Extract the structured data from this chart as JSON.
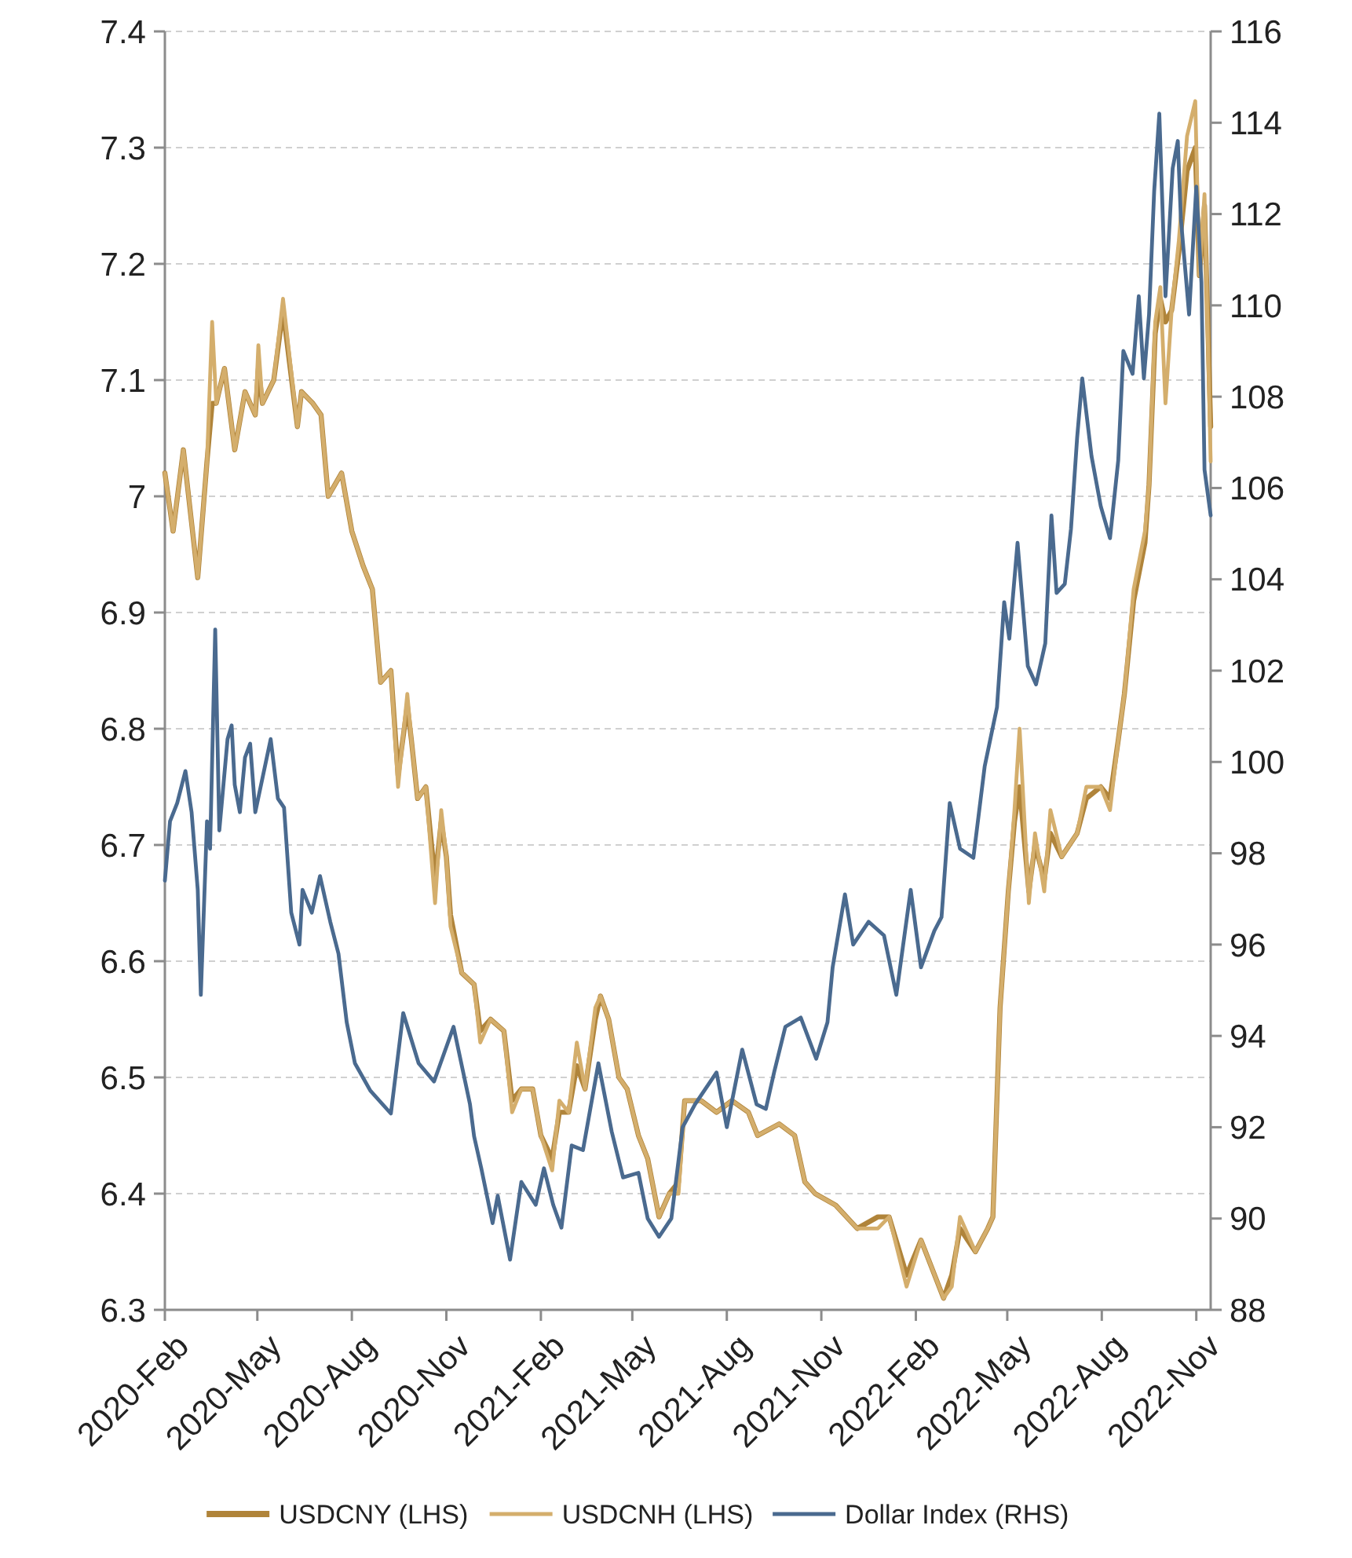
{
  "chart_data": {
    "type": "line",
    "x": [
      "2020-02-01",
      "2020-02-09",
      "2020-02-19",
      "2020-03-04",
      "2020-03-13",
      "2020-03-18",
      "2020-03-22",
      "2020-03-30",
      "2020-04-09",
      "2020-04-19",
      "2020-04-29",
      "2020-05-02",
      "2020-05-06",
      "2020-05-17",
      "2020-05-26",
      "2020-06-09",
      "2020-06-13",
      "2020-06-24",
      "2020-07-02",
      "2020-07-09",
      "2020-07-22",
      "2020-08-01",
      "2020-08-12",
      "2020-08-21",
      "2020-08-29",
      "2020-09-08",
      "2020-09-15",
      "2020-09-24",
      "2020-09-28",
      "2020-10-04",
      "2020-10-12",
      "2020-10-21",
      "2020-10-27",
      "2020-11-01",
      "2020-11-05",
      "2020-11-16",
      "2020-11-28",
      "2020-12-04",
      "2020-12-14",
      "2020-12-27",
      "2021-01-04",
      "2021-01-13",
      "2021-01-24",
      "2021-02-01",
      "2021-02-12",
      "2021-02-19",
      "2021-02-28",
      "2021-03-08",
      "2021-03-16",
      "2021-03-26",
      "2021-03-31",
      "2021-04-08",
      "2021-04-18",
      "2021-04-26",
      "2021-05-07",
      "2021-05-16",
      "2021-05-27",
      "2021-06-06",
      "2021-06-15",
      "2021-06-21",
      "2021-07-07",
      "2021-07-22",
      "2021-08-06",
      "2021-08-22",
      "2021-08-31",
      "2021-09-21",
      "2021-10-06",
      "2021-10-16",
      "2021-10-26",
      "2021-11-15",
      "2021-12-06",
      "2021-12-26",
      "2022-01-06",
      "2022-01-23",
      "2022-02-06",
      "2022-02-28",
      "2022-03-08",
      "2022-03-16",
      "2022-03-31",
      "2022-04-12",
      "2022-04-17",
      "2022-04-24",
      "2022-05-02",
      "2022-05-08",
      "2022-05-13",
      "2022-05-22",
      "2022-05-28",
      "2022-06-06",
      "2022-06-12",
      "2022-06-23",
      "2022-07-08",
      "2022-07-17",
      "2022-07-31",
      "2022-08-09",
      "2022-08-17",
      "2022-08-23",
      "2022-09-01",
      "2022-09-12",
      "2022-09-16",
      "2022-09-22",
      "2022-09-27",
      "2022-10-02",
      "2022-10-08",
      "2022-10-15",
      "2022-10-23",
      "2022-10-31",
      "2022-11-04",
      "2022-11-09",
      "2022-11-15"
    ],
    "series": [
      {
        "name": "USDCNY (LHS)",
        "color": "#b0843a",
        "values": [
          7.02,
          6.97,
          7.04,
          6.93,
          7.03,
          7.08,
          7.08,
          7.11,
          7.04,
          7.09,
          7.07,
          7.11,
          7.08,
          7.1,
          7.16,
          7.06,
          7.09,
          7.08,
          7.07,
          7.0,
          7.02,
          6.97,
          6.94,
          6.92,
          6.84,
          6.85,
          6.76,
          6.82,
          6.79,
          6.74,
          6.75,
          6.67,
          6.72,
          6.69,
          6.64,
          6.59,
          6.58,
          6.54,
          6.55,
          6.54,
          6.48,
          6.49,
          6.49,
          6.45,
          6.43,
          6.47,
          6.47,
          6.51,
          6.49,
          6.55,
          6.57,
          6.55,
          6.5,
          6.49,
          6.45,
          6.43,
          6.38,
          6.4,
          6.41,
          6.48,
          6.48,
          6.47,
          6.48,
          6.47,
          6.45,
          6.46,
          6.45,
          6.41,
          6.4,
          6.39,
          6.37,
          6.38,
          6.38,
          6.33,
          6.36,
          6.31,
          6.33,
          6.37,
          6.35,
          6.37,
          6.38,
          6.56,
          6.66,
          6.72,
          6.75,
          6.66,
          6.7,
          6.67,
          6.71,
          6.69,
          6.71,
          6.74,
          6.75,
          6.74,
          6.79,
          6.83,
          6.91,
          6.96,
          7.01,
          7.14,
          7.17,
          7.15,
          7.16,
          7.21,
          7.28,
          7.3,
          7.19,
          7.25,
          7.06
        ]
      },
      {
        "name": "USDCNH (LHS)",
        "color": "#d4ae6c",
        "values": [
          7.02,
          6.97,
          7.04,
          6.93,
          7.03,
          7.15,
          7.08,
          7.11,
          7.04,
          7.09,
          7.07,
          7.13,
          7.08,
          7.1,
          7.17,
          7.06,
          7.09,
          7.08,
          7.07,
          7.0,
          7.02,
          6.97,
          6.94,
          6.92,
          6.84,
          6.85,
          6.75,
          6.83,
          6.79,
          6.74,
          6.75,
          6.65,
          6.73,
          6.69,
          6.63,
          6.59,
          6.58,
          6.53,
          6.55,
          6.54,
          6.47,
          6.49,
          6.49,
          6.45,
          6.42,
          6.48,
          6.47,
          6.53,
          6.49,
          6.56,
          6.57,
          6.55,
          6.5,
          6.49,
          6.45,
          6.43,
          6.38,
          6.4,
          6.4,
          6.48,
          6.48,
          6.47,
          6.48,
          6.47,
          6.45,
          6.46,
          6.45,
          6.41,
          6.4,
          6.39,
          6.37,
          6.37,
          6.38,
          6.32,
          6.36,
          6.31,
          6.32,
          6.38,
          6.35,
          6.37,
          6.38,
          6.56,
          6.66,
          6.73,
          6.8,
          6.65,
          6.71,
          6.66,
          6.73,
          6.69,
          6.71,
          6.75,
          6.75,
          6.73,
          6.79,
          6.83,
          6.92,
          6.97,
          7.01,
          7.15,
          7.18,
          7.08,
          7.16,
          7.22,
          7.31,
          7.34,
          7.19,
          7.26,
          7.03
        ]
      },
      {
        "name": "Dollar Index (RHS)",
        "color": "#4a6a8f",
        "axis": "y2",
        "x": [
          "2020-02-01",
          "2020-02-06",
          "2020-02-13",
          "2020-02-21",
          "2020-02-27",
          "2020-03-04",
          "2020-03-07",
          "2020-03-13",
          "2020-03-16",
          "2020-03-21",
          "2020-03-25",
          "2020-04-02",
          "2020-04-06",
          "2020-04-09",
          "2020-04-14",
          "2020-04-19",
          "2020-04-24",
          "2020-04-29",
          "2020-05-14",
          "2020-05-21",
          "2020-05-27",
          "2020-06-03",
          "2020-06-11",
          "2020-06-14",
          "2020-06-23",
          "2020-07-01",
          "2020-07-11",
          "2020-07-19",
          "2020-07-27",
          "2020-08-04",
          "2020-08-19",
          "2020-09-08",
          "2020-09-20",
          "2020-10-05",
          "2020-10-20",
          "2020-11-08",
          "2020-11-24",
          "2020-11-28",
          "2020-12-05",
          "2020-12-16",
          "2020-12-21",
          "2021-01-02",
          "2021-01-13",
          "2021-01-27",
          "2021-02-04",
          "2021-02-13",
          "2021-02-21",
          "2021-03-03",
          "2021-03-14",
          "2021-03-29",
          "2021-04-11",
          "2021-04-22",
          "2021-05-07",
          "2021-05-16",
          "2021-05-27",
          "2021-06-08",
          "2021-06-19",
          "2021-07-01",
          "2021-07-22",
          "2021-08-01",
          "2021-08-16",
          "2021-08-30",
          "2021-09-08",
          "2021-09-16",
          "2021-09-27",
          "2021-10-12",
          "2021-10-27",
          "2021-11-07",
          "2021-11-12",
          "2021-11-24",
          "2021-12-02",
          "2021-12-17",
          "2022-01-01",
          "2022-01-13",
          "2022-01-27",
          "2022-02-06",
          "2022-02-19",
          "2022-02-26",
          "2022-03-06",
          "2022-03-16",
          "2022-03-29",
          "2022-04-09",
          "2022-04-21",
          "2022-04-28",
          "2022-05-03",
          "2022-05-11",
          "2022-05-21",
          "2022-05-29",
          "2022-06-07",
          "2022-06-13",
          "2022-06-18",
          "2022-06-26",
          "2022-07-02",
          "2022-07-08",
          "2022-07-13",
          "2022-07-22",
          "2022-07-31",
          "2022-08-09",
          "2022-08-17",
          "2022-08-22",
          "2022-08-31",
          "2022-09-06",
          "2022-09-11",
          "2022-09-16",
          "2022-09-21",
          "2022-09-26",
          "2022-10-02",
          "2022-10-09",
          "2022-10-14",
          "2022-10-17",
          "2022-10-25",
          "2022-11-01",
          "2022-11-06",
          "2022-11-09",
          "2022-11-15"
        ],
        "values": [
          97.4,
          98.7,
          99.1,
          99.8,
          98.9,
          97.2,
          94.9,
          98.7,
          98.1,
          102.9,
          98.5,
          100.5,
          100.8,
          99.5,
          98.9,
          100.1,
          100.4,
          98.9,
          100.5,
          99.2,
          99.0,
          96.7,
          96.0,
          97.2,
          96.7,
          97.5,
          96.5,
          95.8,
          94.3,
          93.4,
          92.8,
          92.3,
          94.5,
          93.4,
          93.0,
          94.2,
          92.5,
          91.8,
          91.1,
          89.9,
          90.5,
          89.1,
          90.8,
          90.3,
          91.1,
          90.3,
          89.8,
          91.6,
          91.5,
          93.4,
          91.9,
          90.9,
          91.0,
          90.0,
          89.6,
          90.0,
          92.0,
          92.5,
          93.2,
          92.0,
          93.7,
          92.5,
          92.4,
          93.2,
          94.2,
          94.4,
          93.5,
          94.3,
          95.5,
          97.1,
          96.0,
          96.5,
          96.2,
          94.9,
          97.2,
          95.5,
          96.3,
          96.6,
          99.1,
          98.1,
          97.9,
          99.9,
          101.2,
          103.5,
          102.7,
          104.8,
          102.1,
          101.7,
          102.6,
          105.4,
          103.7,
          103.9,
          105.1,
          107.1,
          108.4,
          106.7,
          105.6,
          104.9,
          106.6,
          109.0,
          108.5,
          110.2,
          108.4,
          109.8,
          112.5,
          114.2,
          110.2,
          113.0,
          113.6,
          111.9,
          109.8,
          112.6,
          110.5,
          106.4,
          105.4
        ]
      }
    ],
    "xlim": [
      "2020-02-01",
      "2022-11-15"
    ],
    "xticks": [
      {
        "value": "2020-02-01",
        "label": "2020-Feb"
      },
      {
        "value": "2020-05-01",
        "label": "2020-May"
      },
      {
        "value": "2020-08-01",
        "label": "2020-Aug"
      },
      {
        "value": "2020-11-01",
        "label": "2020-Nov"
      },
      {
        "value": "2021-02-01",
        "label": "2021-Feb"
      },
      {
        "value": "2021-05-01",
        "label": "2021-May"
      },
      {
        "value": "2021-08-01",
        "label": "2021-Aug"
      },
      {
        "value": "2021-11-01",
        "label": "2021-Nov"
      },
      {
        "value": "2022-02-01",
        "label": "2022-Feb"
      },
      {
        "value": "2022-05-01",
        "label": "2022-May"
      },
      {
        "value": "2022-08-01",
        "label": "2022-Aug"
      },
      {
        "value": "2022-11-01",
        "label": "2022-Nov"
      }
    ],
    "ylim": [
      6.3,
      7.4
    ],
    "yticks": [
      6.3,
      6.4,
      6.5,
      6.6,
      6.7,
      6.8,
      6.9,
      7,
      7.1,
      7.2,
      7.3,
      7.4
    ],
    "y2lim": [
      88,
      116
    ],
    "y2ticks": [
      88,
      90,
      92,
      94,
      96,
      98,
      100,
      102,
      104,
      106,
      108,
      110,
      112,
      114,
      116
    ],
    "grid": "y",
    "legend": "bottom"
  }
}
